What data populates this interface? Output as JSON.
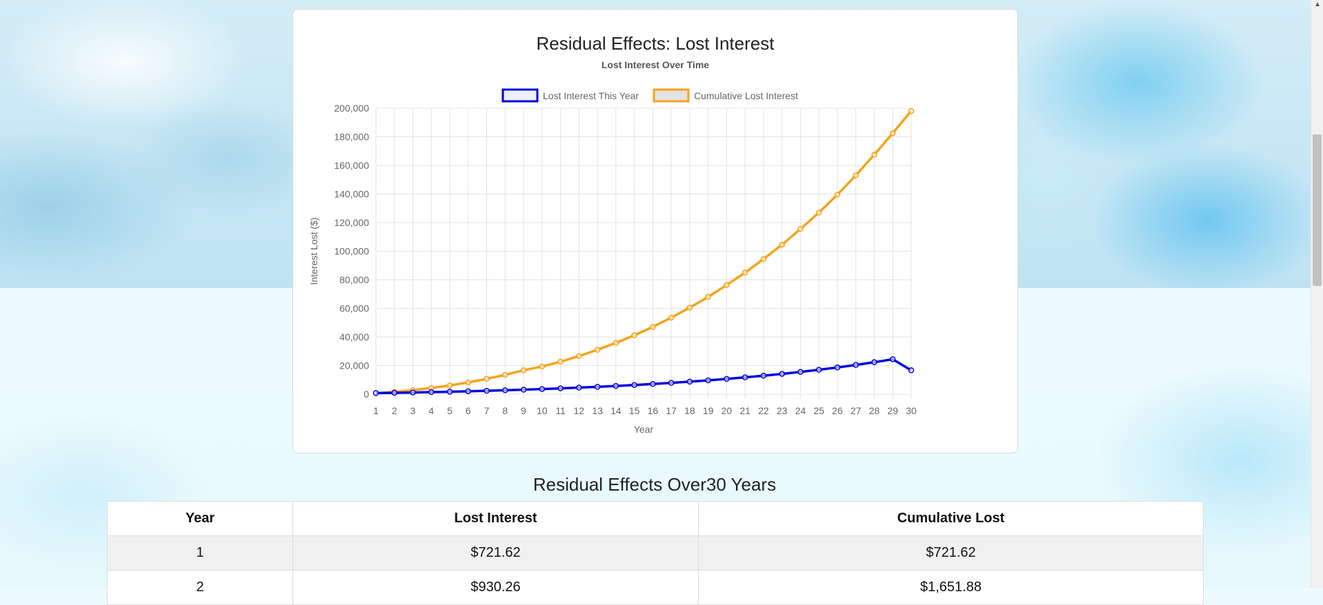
{
  "chart": {
    "heading": "Residual Effects: Lost Interest"
  },
  "chart_data": {
    "type": "line",
    "title": "Lost Interest Over Time",
    "xlabel": "Year",
    "ylabel": "Interest Lost ($)",
    "x": [
      1,
      2,
      3,
      4,
      5,
      6,
      7,
      8,
      9,
      10,
      11,
      12,
      13,
      14,
      15,
      16,
      17,
      18,
      19,
      20,
      21,
      22,
      23,
      24,
      25,
      26,
      27,
      28,
      29,
      30
    ],
    "ylim": [
      0,
      200000
    ],
    "yticks": [
      0,
      20000,
      40000,
      60000,
      80000,
      100000,
      120000,
      140000,
      160000,
      180000,
      200000
    ],
    "ytick_labels": [
      "0",
      "20,000",
      "40,000",
      "60,000",
      "80,000",
      "100,000",
      "120,000",
      "140,000",
      "160,000",
      "180,000",
      "200,000"
    ],
    "grid": true,
    "legend_position": "top",
    "series": [
      {
        "name": "Lost Interest This Year",
        "color": "#0000e0",
        "values": [
          721.62,
          930.26,
          1163.0,
          1420.0,
          1703.0,
          2013.0,
          2352.0,
          2722.0,
          3125.0,
          3563.0,
          4040.0,
          4558.0,
          5120.0,
          5730.0,
          6392.0,
          7110.0,
          7889.0,
          8735.0,
          9652.0,
          10647.0,
          11727.0,
          12898.0,
          14168.0,
          15546.0,
          17041.0,
          18663.0,
          20423.0,
          22332.0,
          24403.0,
          16700.0
        ]
      },
      {
        "name": "Cumulative Lost Interest",
        "color": "#f5a31a",
        "values": [
          721.62,
          1651.88,
          2800,
          4300,
          6100,
          8200,
          10700,
          13500,
          16700,
          19300,
          22700,
          26600,
          31000,
          35800,
          41200,
          47000,
          53500,
          60500,
          68000,
          76300,
          85000,
          94500,
          104500,
          115500,
          127000,
          139500,
          153000,
          167500,
          182500,
          198000
        ]
      }
    ]
  },
  "table": {
    "heading": "Residual Effects Over30 Years",
    "headers": [
      "Year",
      "Lost Interest",
      "Cumulative Lost"
    ],
    "rows": [
      [
        "1",
        "$721.62",
        "$721.62"
      ],
      [
        "2",
        "$930.26",
        "$1,651.88"
      ]
    ]
  },
  "colors": {
    "accent_blue": "#0000e0",
    "accent_orange": "#f5a31a"
  }
}
